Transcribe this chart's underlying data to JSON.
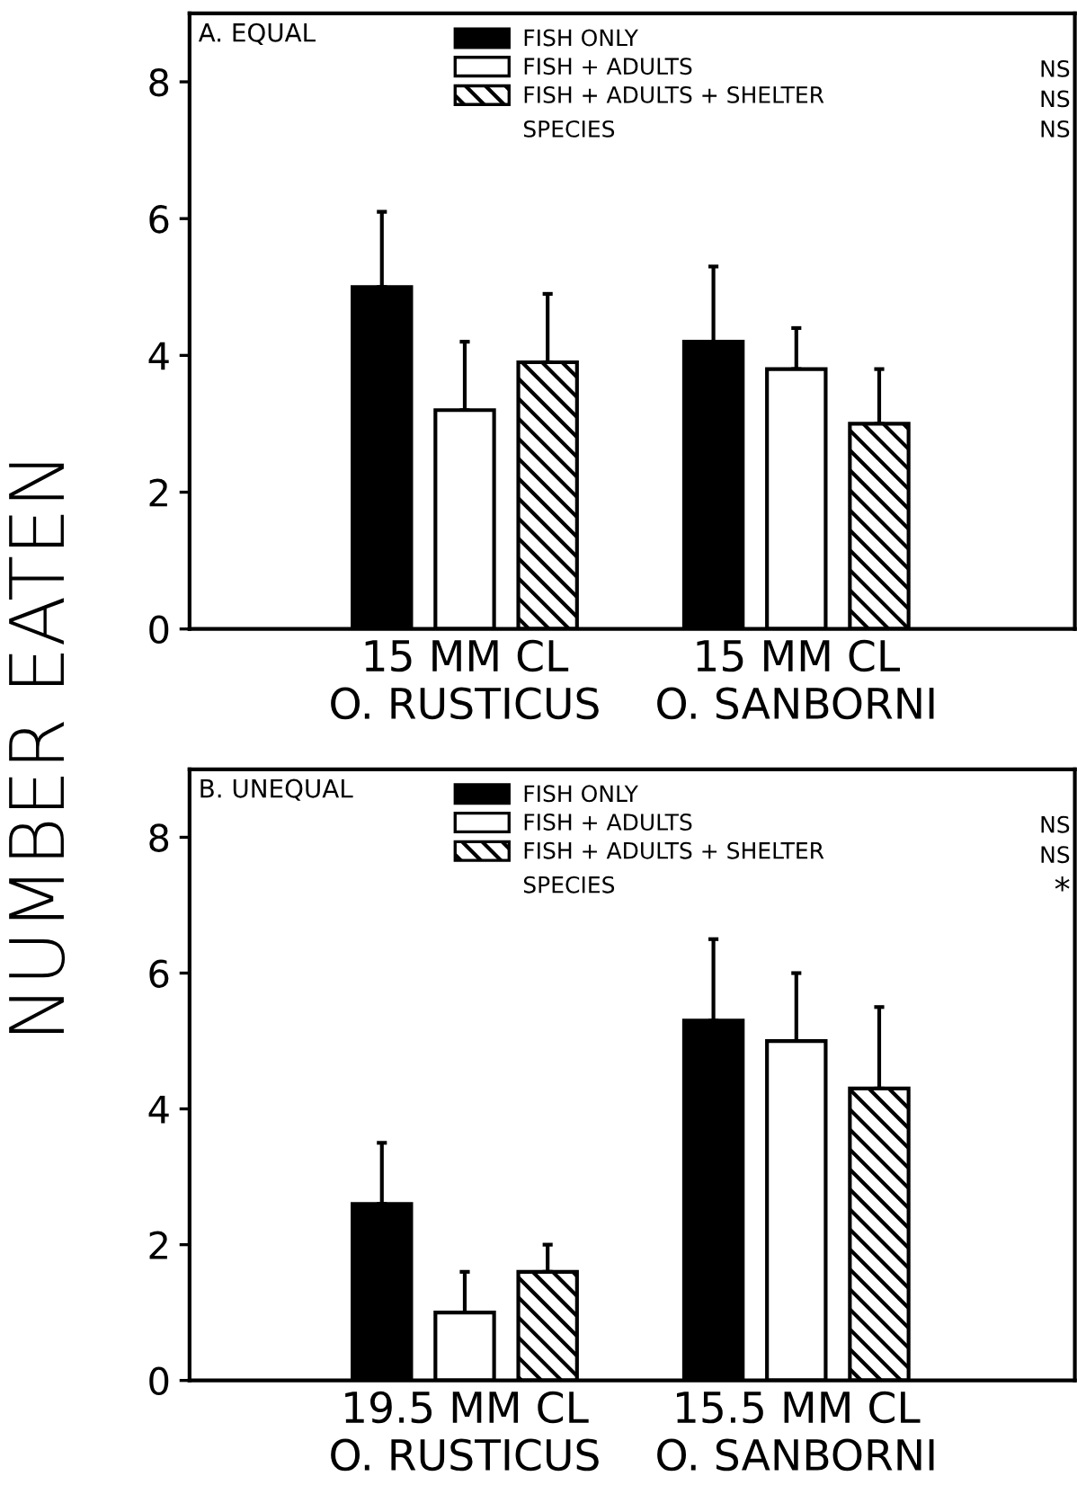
{
  "chart_data": [
    {
      "type": "bar",
      "title": "A. EQUAL",
      "ylabel": "NUMBER EATEN",
      "categories": [
        "15 MM CL\nO. RUSTICUS",
        "15 MM CL\nO. SANBORNI"
      ],
      "series": [
        {
          "name": "FISH ONLY",
          "color": "#000000",
          "values": [
            5.0,
            4.2
          ],
          "errors": [
            [
              5.0,
              6.1
            ],
            [
              4.2,
              5.3
            ]
          ]
        },
        {
          "name": "FISH + ADULTS",
          "color": "#ffffff",
          "values": [
            3.2,
            3.8
          ],
          "errors": [
            [
              3.2,
              4.2
            ],
            [
              3.8,
              4.4
            ]
          ]
        },
        {
          "name": "FISH + ADULTS + SHELTER",
          "color": "#000000",
          "values": [
            3.9,
            3.0
          ],
          "errors": [
            [
              3.9,
              4.9
            ],
            [
              3.0,
              3.8
            ]
          ]
        }
      ],
      "annotations": [
        "NS",
        "NS",
        "SPECIES",
        "NS"
      ],
      "ylim": [
        0,
        9
      ],
      "yticks": [
        0,
        2,
        4,
        6,
        8
      ],
      "legend": "top right",
      "grid": false
    },
    {
      "type": "bar",
      "title": "B. UNEQUAL",
      "categories": [
        "19.5 MM CL\nO. RUSTICUS",
        "15.5 MM CL\nO. SANBORNI"
      ],
      "series": [
        {
          "name": "FISH ONLY",
          "color": "#000000",
          "values": [
            2.6,
            5.3
          ],
          "errors": [
            [
              2.6,
              3.5
            ],
            [
              5.3,
              6.5
            ]
          ]
        },
        {
          "name": "FISH + ADULTS",
          "color": "#ffffff",
          "values": [
            1.0,
            5.0
          ],
          "errors": [
            [
              1.0,
              1.6
            ],
            [
              5.0,
              6.0
            ]
          ]
        },
        {
          "name": "FISH + ADULTS + SHELTER",
          "color": "#000000",
          "values": [
            1.6,
            4.3
          ],
          "errors": [
            [
              1.6,
              2.0
            ],
            [
              4.3,
              5.5
            ]
          ]
        }
      ],
      "annotations": [
        "NS",
        "NS",
        "SPECIES",
        "*"
      ],
      "ylim": [
        0,
        9
      ],
      "yticks": [
        0,
        2,
        4,
        6,
        8
      ],
      "legend": "top right",
      "grid": false
    }
  ]
}
